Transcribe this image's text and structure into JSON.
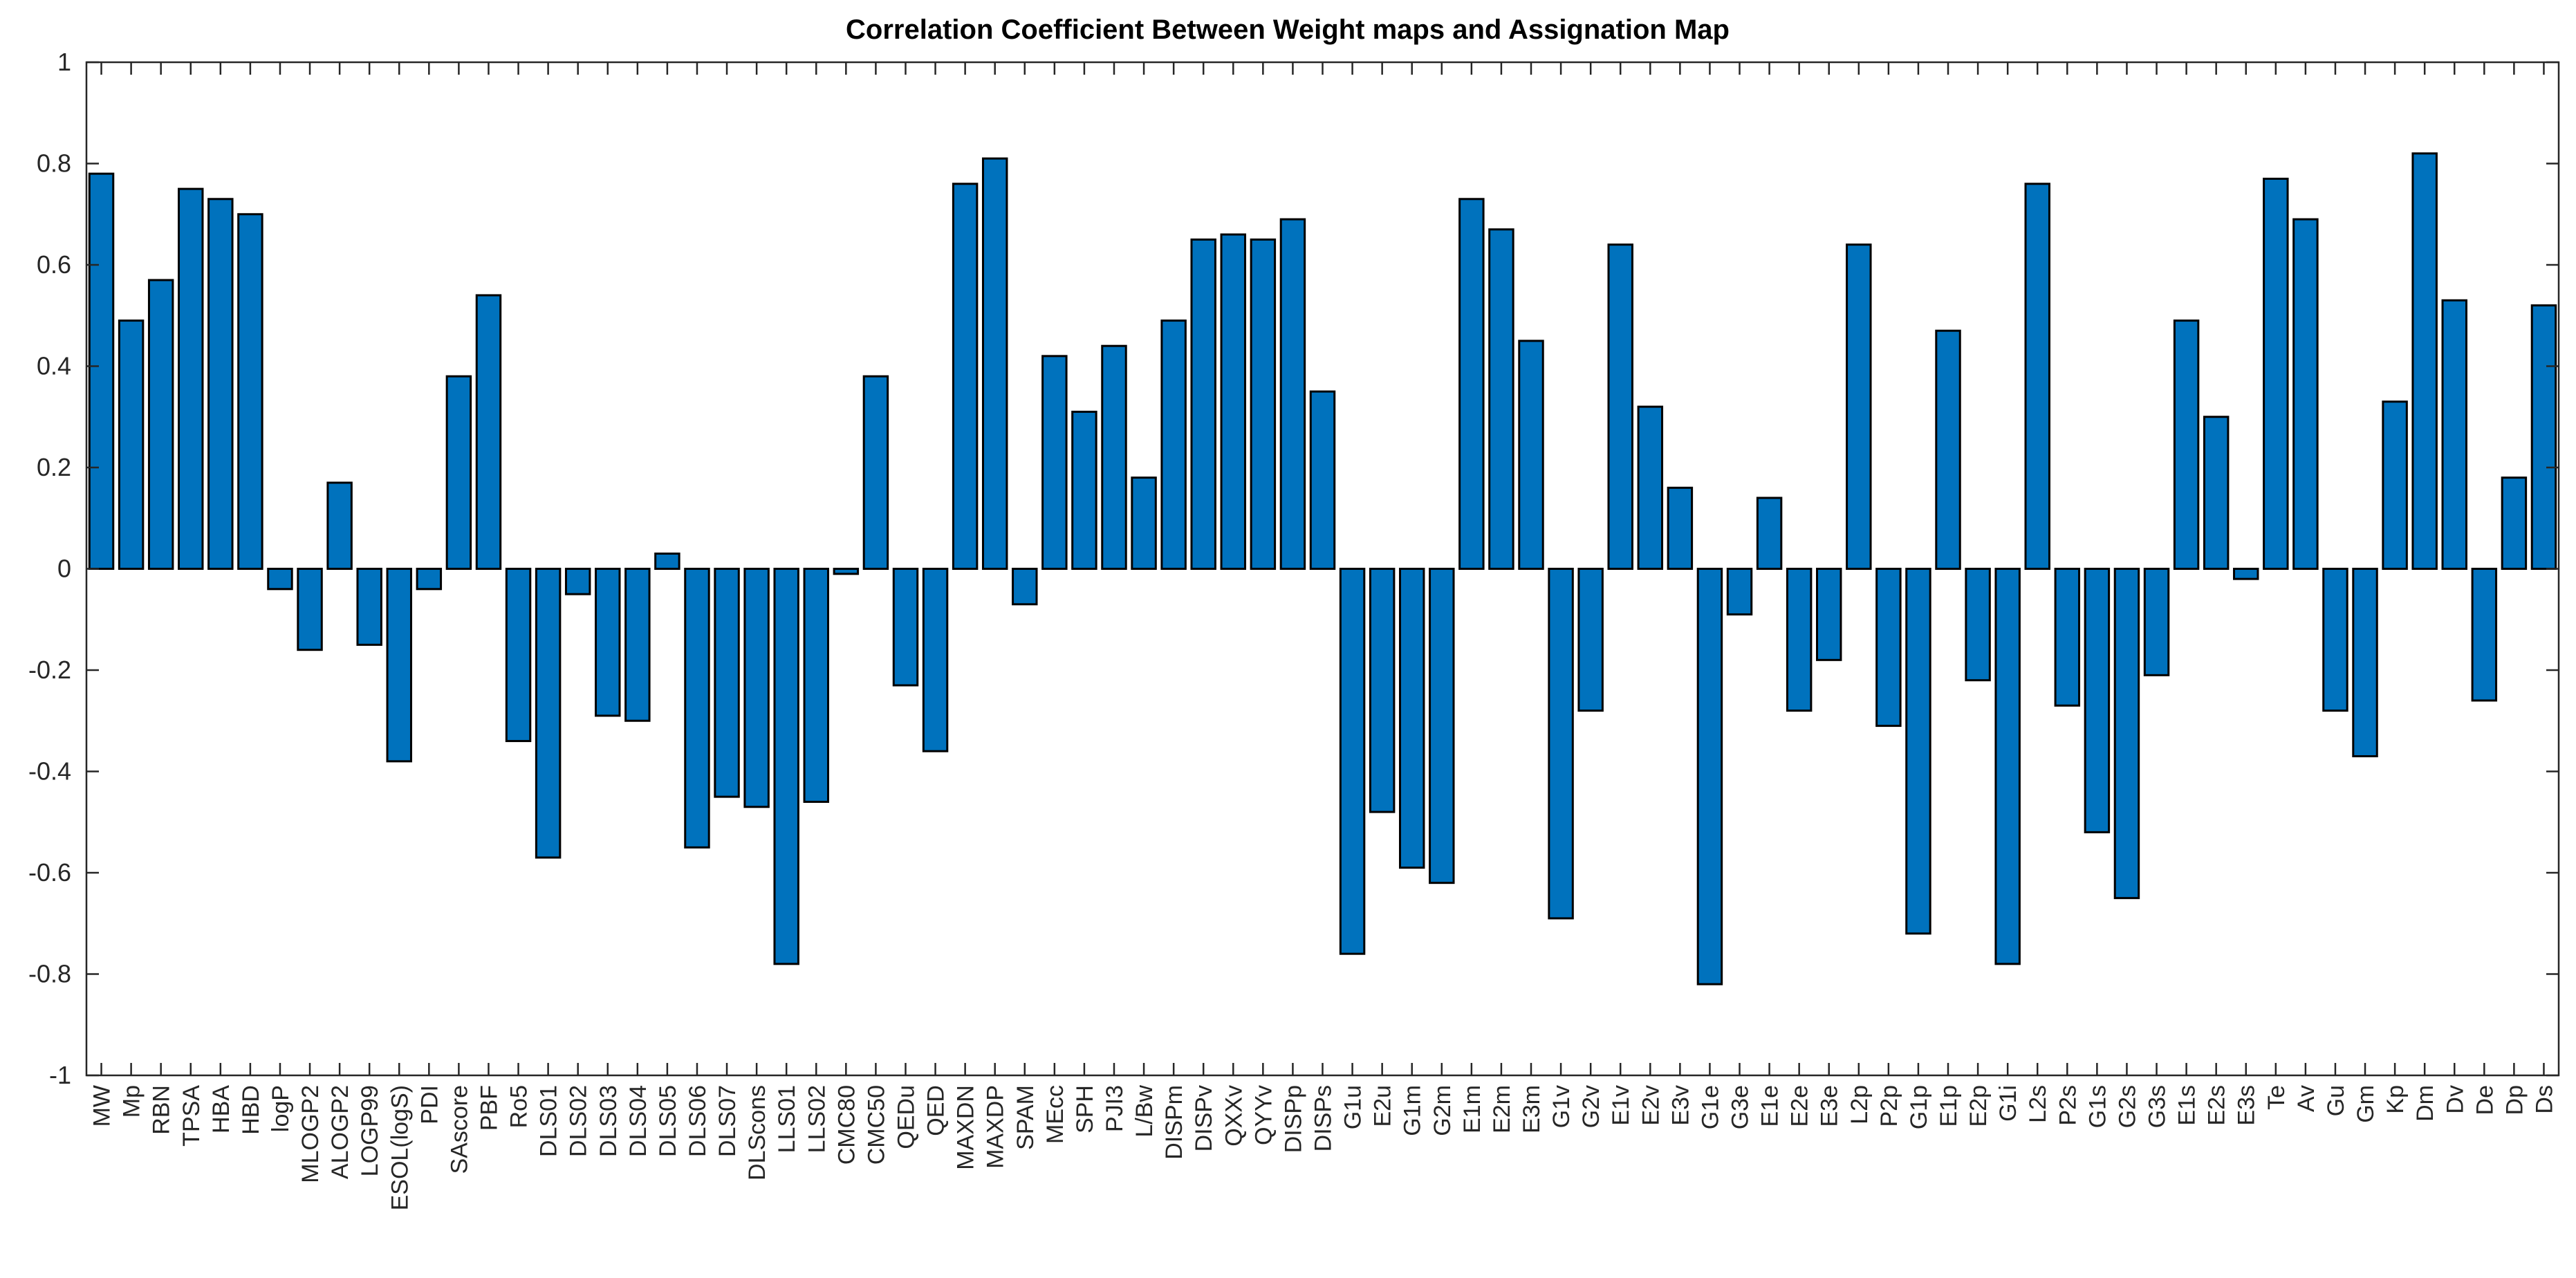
{
  "chart_data": {
    "type": "bar",
    "title": "Correlation Coefficient Between Weight maps and Assignation Map",
    "xlabel": "",
    "ylabel": "",
    "ylim": [
      -1,
      1
    ],
    "yticks": [
      -1,
      -0.8,
      -0.6,
      -0.4,
      -0.2,
      0,
      0.2,
      0.4,
      0.6,
      0.8,
      1
    ],
    "ytick_labels": [
      "-1",
      "-0.8",
      "-0.6",
      "-0.4",
      "-0.2",
      "0",
      "0.2",
      "0.4",
      "0.6",
      "0.8",
      "1"
    ],
    "grid": false,
    "bar_color": "#0072BD",
    "categories": [
      "MW",
      "Mp",
      "RBN",
      "TPSA",
      "HBA",
      "HBD",
      "logP",
      "MLOGP2",
      "ALOGP2",
      "LOGP99",
      "ESOL(logS)",
      "PDI",
      "SAscore",
      "PBF",
      "Ro5",
      "DLS01",
      "DLS02",
      "DLS03",
      "DLS04",
      "DLS05",
      "DLS06",
      "DLS07",
      "DLScons",
      "LLS01",
      "LLS02",
      "CMC80",
      "CMC50",
      "QEDu",
      "QED",
      "MAXDN",
      "MAXDP",
      "SPAM",
      "MEcc",
      "SPH",
      "PJI3",
      "L/Bw",
      "DISPm",
      "DISPv",
      "QXXv",
      "QYYv",
      "DISPp",
      "DISPs",
      "G1u",
      "E2u",
      "G1m",
      "G2m",
      "E1m",
      "E2m",
      "E3m",
      "G1v",
      "G2v",
      "E1v",
      "E2v",
      "E3v",
      "G1e",
      "G3e",
      "E1e",
      "E2e",
      "E3e",
      "L2p",
      "P2p",
      "G1p",
      "E1p",
      "E2p",
      "G1i",
      "L2s",
      "P2s",
      "G1s",
      "G2s",
      "G3s",
      "E1s",
      "E2s",
      "E3s",
      "Te",
      "Av",
      "Gu",
      "Gm",
      "Kp",
      "Dm",
      "Dv",
      "De",
      "Dp",
      "Ds"
    ],
    "values": [
      0.78,
      0.49,
      0.57,
      0.75,
      0.73,
      0.7,
      -0.04,
      -0.16,
      0.17,
      -0.15,
      -0.38,
      -0.04,
      0.38,
      0.54,
      -0.34,
      -0.57,
      -0.05,
      -0.29,
      -0.3,
      0.03,
      -0.55,
      -0.45,
      -0.47,
      -0.78,
      -0.46,
      -0.01,
      0.38,
      -0.23,
      -0.36,
      0.76,
      0.81,
      -0.07,
      0.42,
      0.31,
      0.44,
      0.18,
      0.49,
      0.65,
      0.66,
      0.65,
      0.69,
      0.35,
      -0.76,
      -0.48,
      -0.59,
      -0.62,
      0.73,
      0.67,
      0.45,
      -0.69,
      -0.28,
      0.64,
      0.32,
      0.16,
      -0.82,
      -0.09,
      0.14,
      -0.28,
      -0.18,
      0.64,
      -0.31,
      -0.72,
      0.47,
      -0.22,
      -0.78,
      0.76,
      -0.27,
      -0.52,
      -0.65,
      -0.21,
      0.49,
      0.3,
      -0.02,
      0.77,
      0.69,
      -0.28,
      -0.37,
      0.33,
      0.82,
      0.53,
      -0.26,
      0.18,
      0.52
    ]
  }
}
